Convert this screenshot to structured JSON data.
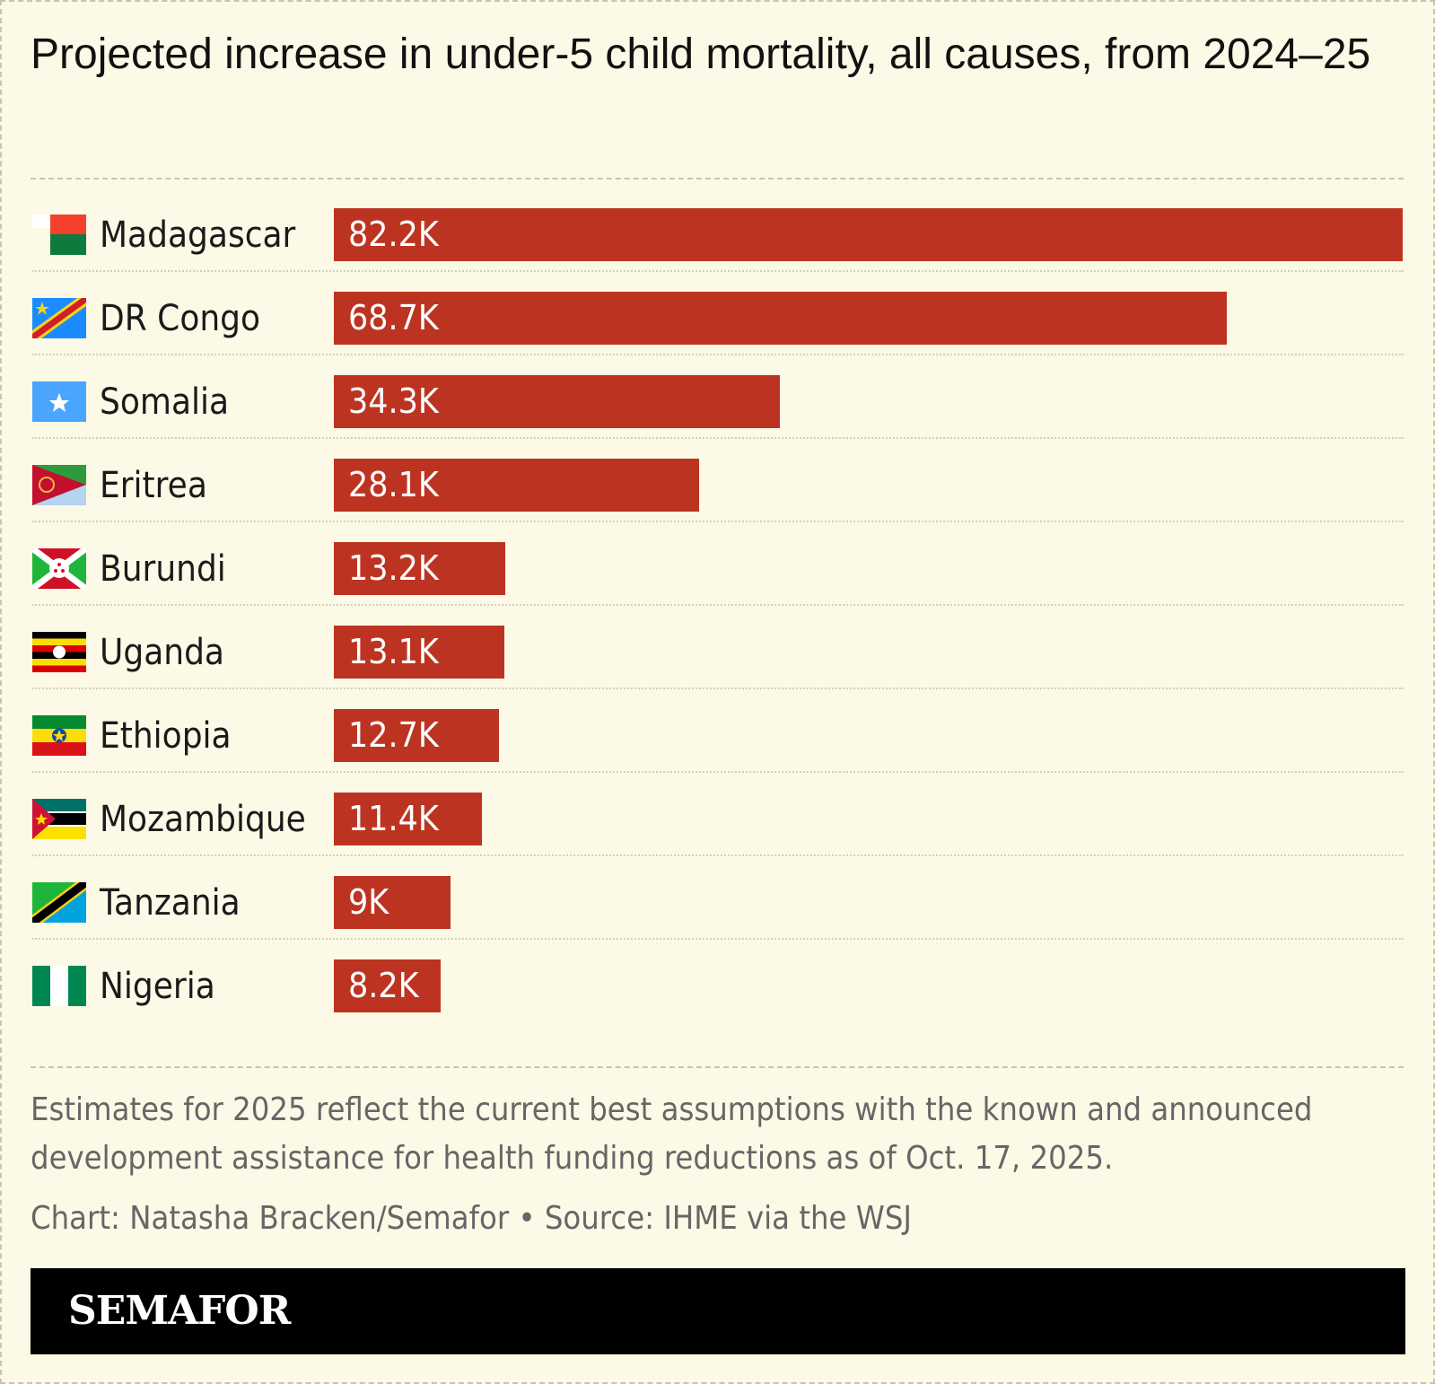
{
  "title": "Projected increase in under-5 child mortality, all causes, from 2024–25",
  "chart_data": {
    "type": "bar",
    "orientation": "horizontal",
    "categories": [
      "Madagascar",
      "DR Congo",
      "Somalia",
      "Eritrea",
      "Burundi",
      "Uganda",
      "Ethiopia",
      "Mozambique",
      "Tanzania",
      "Nigeria"
    ],
    "values": [
      82200,
      68700,
      34300,
      28100,
      13200,
      13100,
      12700,
      11400,
      9000,
      8200
    ],
    "data_labels": [
      "82.2K",
      "68.7K",
      "34.3K",
      "28.1K",
      "13.2K",
      "13.1K",
      "12.7K",
      "11.4K",
      "9K",
      "8.2K"
    ],
    "flags": [
      "madagascar-flag-icon",
      "dr-congo-flag-icon",
      "somalia-flag-icon",
      "eritrea-flag-icon",
      "burundi-flag-icon",
      "uganda-flag-icon",
      "ethiopia-flag-icon",
      "mozambique-flag-icon",
      "tanzania-flag-icon",
      "nigeria-flag-icon"
    ],
    "bar_color": "#bc3421",
    "grid": false
  },
  "note": "Estimates for 2025 reflect the current best assumptions with the known and announced development assistance for health funding reductions as of Oct. 17, 2025.",
  "credit": "Chart: Natasha Bracken/Semafor • Source: IHME via the WSJ",
  "brand": "SEMAFOR"
}
